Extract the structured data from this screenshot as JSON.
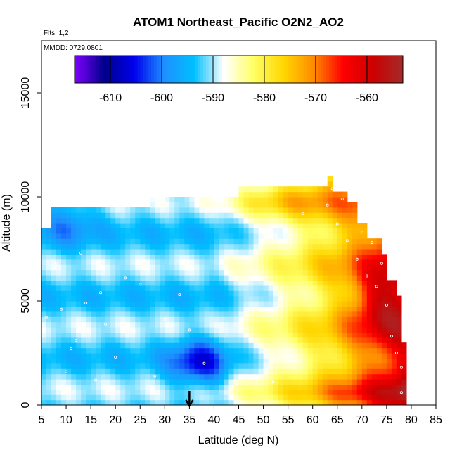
{
  "chart_data": {
    "type": "heatmap",
    "title": "ATOM1 Northeast_Pacific O2N2_AO2",
    "flights_note": "Flts: 1,2",
    "date_note": "MMDD: 0729,0801",
    "xlabel": "Latitude (deg N)",
    "ylabel": "Altitude (m)",
    "xlim": [
      5,
      85
    ],
    "ylim": [
      0,
      17500
    ],
    "xticks": [
      5,
      10,
      15,
      20,
      25,
      30,
      35,
      40,
      45,
      50,
      55,
      60,
      65,
      70,
      75,
      80,
      85
    ],
    "yticks": [
      0,
      5000,
      10000,
      15000
    ],
    "colorbar": {
      "min": -617,
      "max": -553,
      "ticks": [
        -610,
        -600,
        -590,
        -580,
        -570,
        -560
      ],
      "colors": [
        "#7f00ff",
        "#00008b",
        "#0000ee",
        "#1e90ff",
        "#00bfff",
        "#ffffff",
        "#ffff66",
        "#ffd700",
        "#ff8c00",
        "#ff0000",
        "#cc0000",
        "#a52a2a"
      ]
    },
    "marker": {
      "latitude": 35,
      "altitude": 0,
      "symbol": "down-arrow"
    },
    "colors": {
      "frame": "#000000",
      "sample_points": "#ffffff"
    }
  }
}
